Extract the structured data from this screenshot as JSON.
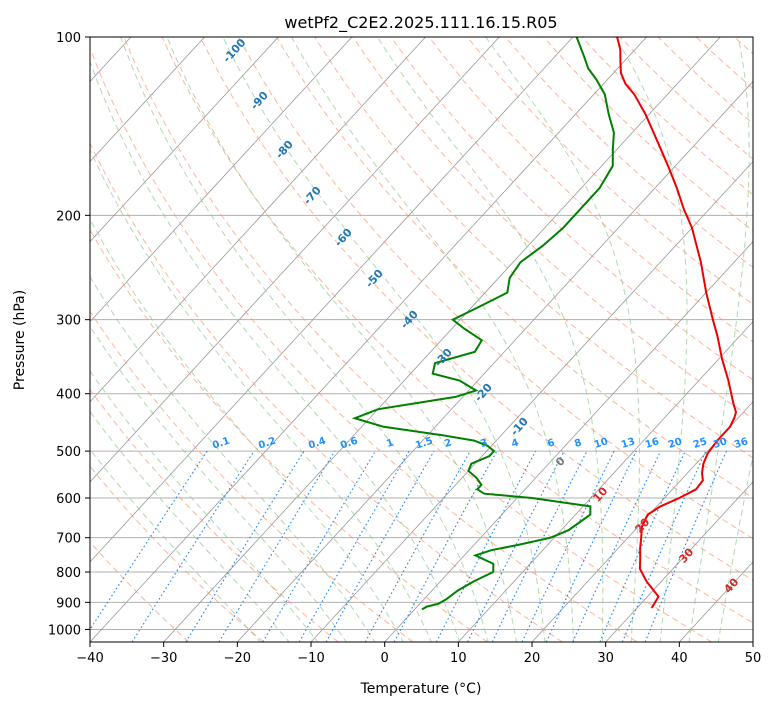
{
  "chart_data": {
    "type": "line",
    "title": "wetPf2_C2E2.2025.111.16.15.R05",
    "xlabel": "Temperature (°C)",
    "ylabel": "Pressure (hPa)",
    "xlim": [
      -40,
      50
    ],
    "ylim": [
      1050,
      100
    ],
    "y_scale": "log",
    "skew": "skew-T log-p",
    "grid": true,
    "x_ticks": [
      -40,
      -30,
      -20,
      -10,
      0,
      10,
      20,
      30,
      40,
      50
    ],
    "y_ticks": [
      100,
      200,
      300,
      400,
      500,
      600,
      700,
      800,
      900,
      1000
    ],
    "series": [
      {
        "color": "#ee0000",
        "points": [
          [
            920,
            32.0
          ],
          [
            880,
            31.5
          ],
          [
            830,
            28.0
          ],
          [
            790,
            25.5
          ],
          [
            760,
            24.3
          ],
          [
            730,
            23.0
          ],
          [
            700,
            21.8
          ],
          [
            670,
            20.5
          ],
          [
            640,
            19.8
          ],
          [
            620,
            20.5
          ],
          [
            600,
            22.0
          ],
          [
            580,
            23.2
          ],
          [
            560,
            23.0
          ],
          [
            545,
            22.0
          ],
          [
            525,
            21.0
          ],
          [
            505,
            20.3
          ],
          [
            480,
            20.0
          ],
          [
            455,
            20.0
          ],
          [
            440,
            19.5
          ],
          [
            430,
            19.0
          ],
          [
            415,
            17.5
          ],
          [
            380,
            14.0
          ],
          [
            350,
            10.5
          ],
          [
            320,
            7.0
          ],
          [
            300,
            4.3
          ],
          [
            270,
            0.0
          ],
          [
            240,
            -4.5
          ],
          [
            210,
            -10.0
          ],
          [
            195,
            -13.5
          ],
          [
            180,
            -17.0
          ],
          [
            165,
            -21.0
          ],
          [
            150,
            -25.5
          ],
          [
            135,
            -30.5
          ],
          [
            125,
            -34.5
          ],
          [
            120,
            -37.0
          ],
          [
            115,
            -39.0
          ],
          [
            110,
            -40.5
          ],
          [
            105,
            -42.0
          ],
          [
            100,
            -44.0
          ]
        ]
      },
      {
        "color": "#008000",
        "points": [
          [
            925,
            1.0
          ],
          [
            915,
            1.3
          ],
          [
            905,
            2.5
          ],
          [
            890,
            3.0
          ],
          [
            860,
            3.5
          ],
          [
            830,
            4.5
          ],
          [
            800,
            6.0
          ],
          [
            775,
            5.0
          ],
          [
            750,
            1.5
          ],
          [
            735,
            3.0
          ],
          [
            720,
            6.0
          ],
          [
            700,
            9.5
          ],
          [
            680,
            11.0
          ],
          [
            660,
            11.5
          ],
          [
            640,
            12.0
          ],
          [
            620,
            11.0
          ],
          [
            600,
            2.0
          ],
          [
            590,
            -5.0
          ],
          [
            580,
            -6.5
          ],
          [
            570,
            -6.5
          ],
          [
            555,
            -8.0
          ],
          [
            540,
            -10.0
          ],
          [
            525,
            -10.5
          ],
          [
            510,
            -9.0
          ],
          [
            500,
            -9.0
          ],
          [
            490,
            -10.5
          ],
          [
            480,
            -13.0
          ],
          [
            470,
            -18.0
          ],
          [
            455,
            -27.0
          ],
          [
            440,
            -32.0
          ],
          [
            425,
            -30.0
          ],
          [
            405,
            -21.0
          ],
          [
            395,
            -19.0
          ],
          [
            380,
            -22.5
          ],
          [
            370,
            -27.0
          ],
          [
            355,
            -28.0
          ],
          [
            340,
            -24.0
          ],
          [
            325,
            -24.5
          ],
          [
            310,
            -28.5
          ],
          [
            300,
            -31.0
          ],
          [
            285,
            -29.0
          ],
          [
            270,
            -27.0
          ],
          [
            255,
            -28.5
          ],
          [
            240,
            -29.0
          ],
          [
            225,
            -28.0
          ],
          [
            210,
            -27.5
          ],
          [
            195,
            -27.5
          ],
          [
            180,
            -27.5
          ],
          [
            165,
            -28.5
          ],
          [
            155,
            -30.5
          ],
          [
            145,
            -32.5
          ],
          [
            135,
            -35.5
          ],
          [
            125,
            -38.5
          ],
          [
            118,
            -41.5
          ],
          [
            113,
            -44.0
          ],
          [
            108,
            -46.0
          ],
          [
            100,
            -49.5
          ]
        ]
      }
    ],
    "dry_adiabat_labels": [
      "-100",
      "-90",
      "-80",
      "-70",
      "-60",
      "-50",
      "-40",
      "-30",
      "-20",
      "-10",
      "0",
      "10",
      "20",
      "30",
      "40"
    ],
    "mixing_ratio_labels": [
      "0.1",
      "0.2",
      "0.4",
      "0.6",
      "1",
      "1.5",
      "2",
      "3",
      "4",
      "6",
      "8",
      "10",
      "13",
      "16",
      "20",
      "25",
      "30",
      "36"
    ],
    "colors": {
      "temperature": "#ee0000",
      "dewpoint": "#008000",
      "dry_adiabat": "#ff8c66",
      "moist_adiabat": "#90c890",
      "mixing_ratio": "#2288ee",
      "isotherm": "#999999",
      "cold_label": "#1f77b4",
      "warm_label": "#d62728",
      "zero_label": "#777777",
      "mixing_label": "#1e90ff",
      "frost_curve": "#d8b892"
    }
  }
}
